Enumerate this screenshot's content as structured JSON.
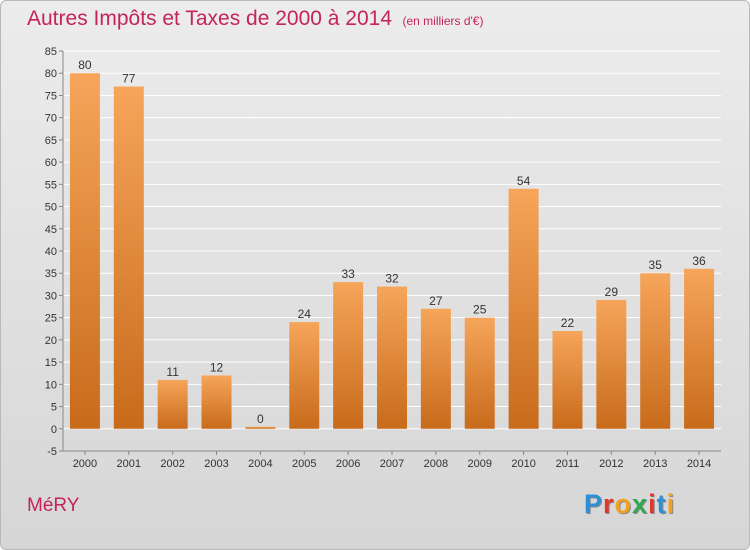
{
  "title": "Autres Impôts et Taxes de 2000 à 2014",
  "subtitle": "(en milliers d'€)",
  "commune": "MéRY",
  "brand": {
    "text": "Proxiti",
    "letter_colors": [
      "#2f8fd6",
      "#e0362c",
      "#f2a01f",
      "#2fa84f",
      "#e0362c",
      "#2f8fd6",
      "#f2a01f"
    ]
  },
  "colors": {
    "bar_top": "#f6a55a",
    "bar_bottom": "#c86b1b",
    "accent": "#c4245a",
    "grid": "#ffffff"
  },
  "chart_data": {
    "type": "bar",
    "categories": [
      "2000",
      "2001",
      "2002",
      "2003",
      "2004",
      "2005",
      "2006",
      "2007",
      "2008",
      "2009",
      "2010",
      "2011",
      "2012",
      "2013",
      "2014"
    ],
    "values": [
      80,
      77,
      11,
      12,
      0,
      24,
      33,
      32,
      27,
      25,
      54,
      22,
      29,
      35,
      36
    ],
    "ylim": [
      -5,
      85
    ],
    "yticks": [
      -5,
      0,
      5,
      10,
      15,
      20,
      25,
      30,
      35,
      40,
      45,
      50,
      55,
      60,
      65,
      70,
      75,
      80,
      85
    ],
    "data_labels": true,
    "grid": true
  }
}
